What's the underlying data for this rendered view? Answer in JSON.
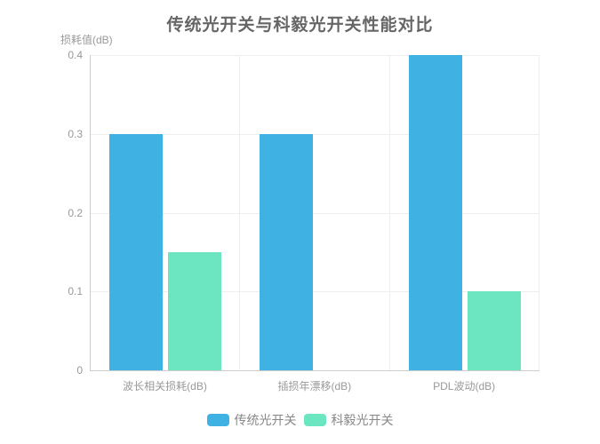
{
  "title": "传统光开关与科毅光开关性能对比",
  "chart_data": {
    "type": "bar",
    "title": "传统光开关与科毅光开关性能对比",
    "ylabel": "损耗值(dB)",
    "xlabel": "",
    "categories": [
      "波长相关损耗(dB)",
      "插损年漂移(dB)",
      "PDL波动(dB)"
    ],
    "series": [
      {
        "name": "传统光开关",
        "color": "#3fb1e3",
        "values": [
          0.3,
          0.3,
          0.4
        ]
      },
      {
        "name": "科毅光开关",
        "color": "#6be6c1",
        "values": [
          0.15,
          0,
          0.1
        ]
      }
    ],
    "ylim": [
      0,
      0.4
    ],
    "yticks": [
      0,
      0.1,
      0.2,
      0.3,
      0.4
    ],
    "grid": true,
    "legend_position": "bottom"
  },
  "colors": {
    "series_blue": "#3fb1e3",
    "series_green": "#6be6c1",
    "title_text": "#666666",
    "axis_label": "#999999",
    "grid_line": "#eeeeee",
    "axis_line": "#cccccc",
    "legend_text": "#888888"
  }
}
